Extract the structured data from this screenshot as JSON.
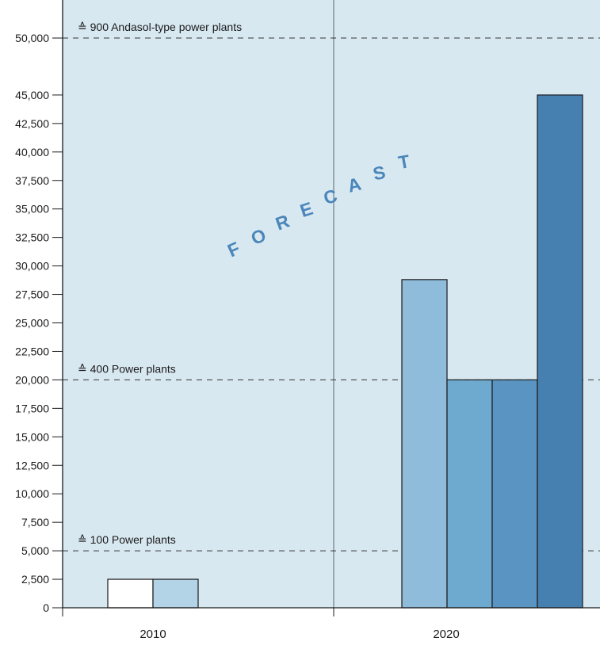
{
  "colors": {
    "plot_background": "#d8e8f1",
    "axis": "#1a1a1a",
    "divider": "#5a6670",
    "forecast_text": "#4a86ba",
    "bar_stroke": "#1a1a1a"
  },
  "chart_data": {
    "type": "bar",
    "categories": [
      "2010",
      "2020"
    ],
    "ylim": [
      0,
      52500
    ],
    "yticks": [
      0,
      2500,
      5000,
      7500,
      10000,
      12500,
      15000,
      17500,
      20000,
      22500,
      25000,
      27500,
      30000,
      32500,
      35000,
      37500,
      40000,
      42500,
      45000,
      50000
    ],
    "ytick_labels": [
      "0",
      "2,500",
      "5,000",
      "7,500",
      "10,000",
      "12,500",
      "15,000",
      "17,500",
      "20,000",
      "22,500",
      "25,000",
      "27,500",
      "30,000",
      "32,500",
      "35,000",
      "37,500",
      "40,000",
      "42,500",
      "45,000",
      "50,000"
    ],
    "bars": [
      {
        "category": "2010",
        "value": 2500,
        "color": "#ffffff"
      },
      {
        "category": "2010",
        "value": 2500,
        "color": "#b3d3e6"
      },
      {
        "category": "2020",
        "value": 28800,
        "color": "#8fbcdb"
      },
      {
        "category": "2020",
        "value": 20000,
        "color": "#6ea9cf"
      },
      {
        "category": "2020",
        "value": 20000,
        "color": "#5a94c2"
      },
      {
        "category": "2020",
        "value": 45000,
        "color": "#4580b0"
      }
    ],
    "reference_lines": [
      {
        "value": 50000,
        "label": "≙ 900 Andasol-type power plants"
      },
      {
        "value": 20000,
        "label": "≙ 400 Power plants"
      },
      {
        "value": 5000,
        "label": "≙ 100 Power plants"
      }
    ],
    "annotation": "FORECAST",
    "xlabel": "",
    "ylabel": "",
    "grid": false
  }
}
